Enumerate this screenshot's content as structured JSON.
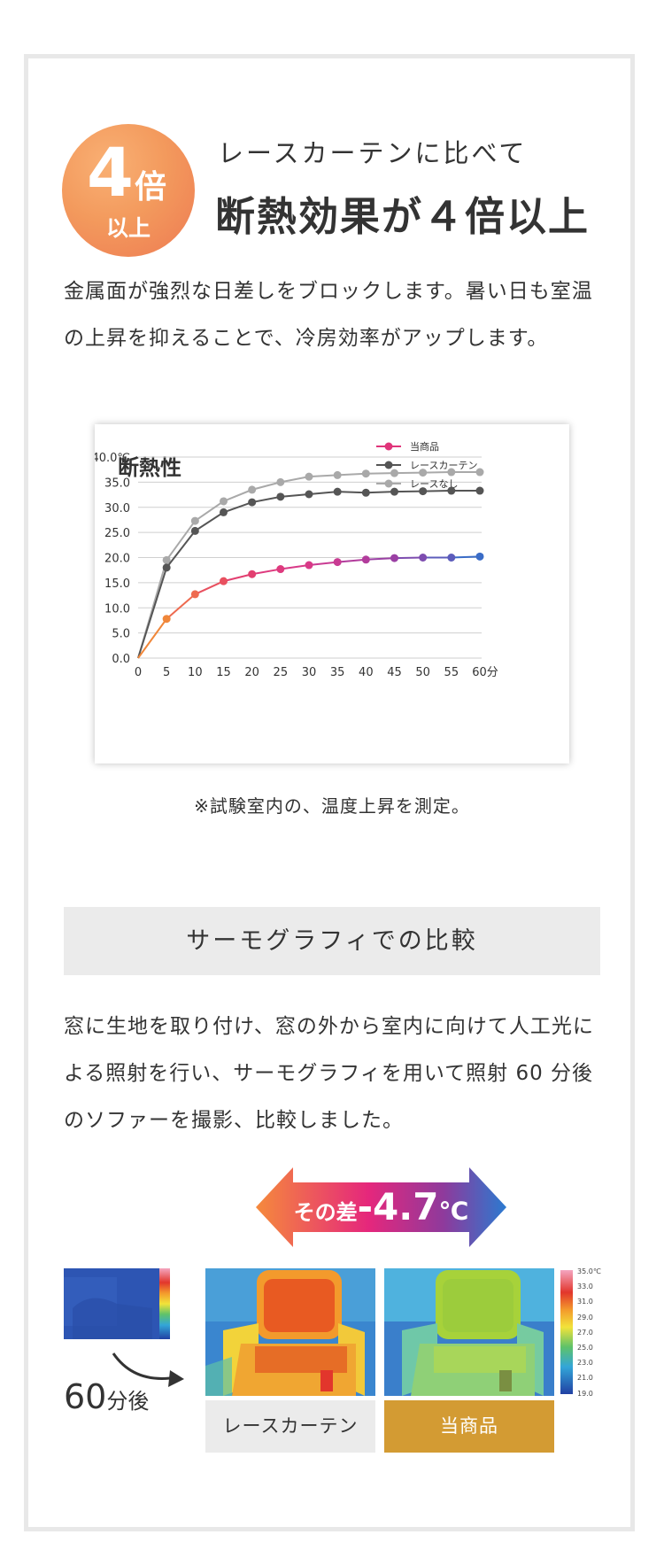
{
  "badge": {
    "number": "4",
    "unit": "倍",
    "sub": "以上"
  },
  "header": {
    "lead": "レースカーテンに比べて",
    "headline": "断熱効果が４倍以上"
  },
  "intro": {
    "line1": "金属面が強烈な日差しをブロックします。暑い日も室温",
    "line2": "の上昇を抑えることで、冷房効率がアップします。"
  },
  "chart_data": {
    "type": "line",
    "title": "断熱性",
    "x": [
      0,
      5,
      10,
      15,
      20,
      25,
      30,
      35,
      40,
      45,
      50,
      55,
      60
    ],
    "x_tick_labels": [
      "0",
      "5",
      "10",
      "15",
      "20",
      "25",
      "30",
      "35",
      "40",
      "45",
      "50",
      "55",
      "60分"
    ],
    "y_tick_labels": [
      "40.0℃",
      "35.0",
      "30.0",
      "25.0",
      "20.0",
      "15.0",
      "10.0",
      "5.0",
      "0.0"
    ],
    "ylim": [
      0,
      40
    ],
    "grid": true,
    "legend_position": "top-right",
    "series": [
      {
        "name": "当商品",
        "color": "#e0357a",
        "values": [
          0,
          7.8,
          12.7,
          15.3,
          16.7,
          17.7,
          18.5,
          19.1,
          19.6,
          19.9,
          20.0,
          20.0,
          20.2
        ]
      },
      {
        "name": "レースカーテン",
        "color": "#555555",
        "values": [
          0,
          18.0,
          25.3,
          29.0,
          31.0,
          32.1,
          32.6,
          33.1,
          32.9,
          33.1,
          33.2,
          33.3,
          33.3
        ]
      },
      {
        "name": "レースなし",
        "color": "#a9a9a9",
        "values": [
          0,
          19.5,
          27.3,
          31.2,
          33.5,
          35.0,
          36.1,
          36.4,
          36.7,
          36.8,
          36.9,
          37.0,
          37.0
        ]
      }
    ]
  },
  "note": "※試験室内の、温度上昇を測定。",
  "section": {
    "heading": "サーモグラフィでの比較"
  },
  "body": {
    "line1": "窓に生地を取り付け、窓の外から室内に向けて人工光に",
    "line2": "よる照射を行い、サーモグラフィを用いて照射 60 分後",
    "line3": "のソファーを撮影、比較しました。"
  },
  "diff": {
    "prefix": "その差",
    "value": "-4.7",
    "unit": "℃"
  },
  "after": {
    "number": "60",
    "unit": "分後"
  },
  "scale": [
    "35.0℃",
    "33.0",
    "31.0",
    "29.0",
    "27.0",
    "25.0",
    "23.0",
    "21.0",
    "19.0"
  ],
  "captions": {
    "lace": "レースカーテン",
    "product": "当商品"
  },
  "colors": {
    "badge": "#f39a5d",
    "product_caption": "#d39b33",
    "caption_gray": "#ebebeb",
    "frame": "#e8e8e8"
  }
}
